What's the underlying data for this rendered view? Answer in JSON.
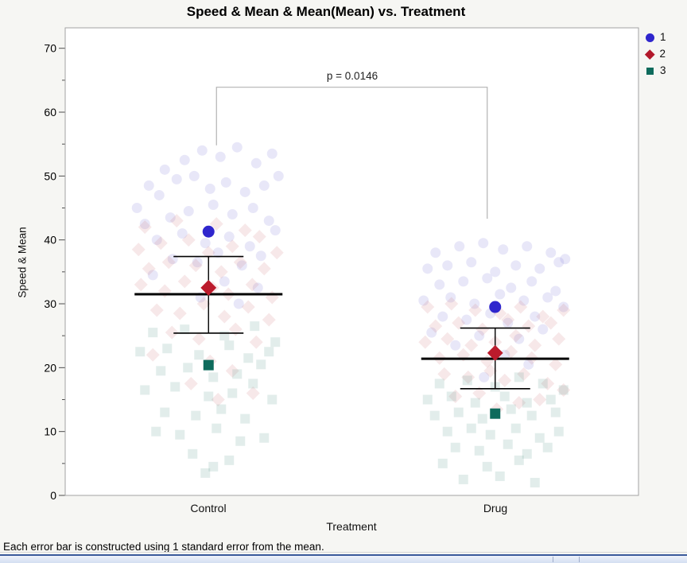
{
  "chart": {
    "title": "Speed & Mean & Mean(Mean) vs. Treatment",
    "y_axis_label": "Speed & Mean",
    "x_axis_label": "Treatment",
    "p_value_label": "p = 0.0146",
    "caption": "Each error bar is constructed using 1 standard error from the mean."
  },
  "legend": {
    "items": [
      {
        "label": "1",
        "marker": "circle",
        "color": "#2f26cd"
      },
      {
        "label": "2",
        "marker": "diamond",
        "color": "#b2182b"
      },
      {
        "label": "3",
        "marker": "square",
        "color": "#0e6b5c"
      }
    ]
  },
  "chart_data": {
    "type": "scatter",
    "title": "Speed & Mean & Mean(Mean) vs. Treatment",
    "xlabel": "Treatment",
    "ylabel": "Speed & Mean",
    "ylim": [
      0,
      73.2
    ],
    "yticks_major": [
      0,
      10,
      20,
      30,
      40,
      50,
      60,
      70
    ],
    "yticks_minor": [
      5,
      15,
      25,
      35,
      45,
      55,
      65
    ],
    "grid": false,
    "legend_position": "right",
    "categories": [
      "Control",
      "Drug"
    ],
    "series": [
      {
        "name": "1",
        "marker": "circle",
        "color": "#2f26cd",
        "light": "rgba(118,112,216,0.17)"
      },
      {
        "name": "2",
        "marker": "diamond",
        "color": "#bc1b2c",
        "light": "rgba(203,112,120,0.16)"
      },
      {
        "name": "3",
        "marker": "square",
        "color": "#0e6b5c",
        "light": "rgba(92,155,144,0.18)"
      }
    ],
    "annotation": {
      "text": "p = 0.0146",
      "bar_y": 63.9,
      "left_end_y": 54.8,
      "right_end_y": 43.3
    },
    "groups": [
      {
        "name": "Control",
        "mean_line": 31.5,
        "se_low": 25.4,
        "se_high": 37.4,
        "series_means": [
          41.3,
          32.5,
          20.4
        ],
        "points": {
          "1": [
            [
              -75,
              48.5
            ],
            [
              -55,
              51
            ],
            [
              -30,
              52.5
            ],
            [
              -8,
              54
            ],
            [
              15,
              53
            ],
            [
              36,
              54.5
            ],
            [
              60,
              52
            ],
            [
              80,
              53.5
            ],
            [
              -90,
              45
            ],
            [
              -62,
              47
            ],
            [
              -40,
              49.5
            ],
            [
              -18,
              50
            ],
            [
              2,
              48
            ],
            [
              22,
              49
            ],
            [
              46,
              47.5
            ],
            [
              70,
              48.5
            ],
            [
              88,
              50
            ],
            [
              -80,
              42.5
            ],
            [
              -48,
              43.5
            ],
            [
              -25,
              44.5
            ],
            [
              6,
              45.5
            ],
            [
              30,
              44
            ],
            [
              56,
              45
            ],
            [
              76,
              43
            ],
            [
              -65,
              40
            ],
            [
              -33,
              41
            ],
            [
              -4,
              39.5
            ],
            [
              26,
              40.5
            ],
            [
              52,
              39
            ],
            [
              84,
              41.5
            ],
            [
              -45,
              37
            ],
            [
              -14,
              36.5
            ],
            [
              12,
              38
            ],
            [
              42,
              36
            ],
            [
              66,
              37.5
            ],
            [
              -70,
              34.5
            ],
            [
              20,
              33.5
            ],
            [
              -10,
              31
            ],
            [
              38,
              30
            ],
            [
              62,
              32.5
            ]
          ],
          "2": [
            [
              -80,
              42
            ],
            [
              -40,
              43
            ],
            [
              10,
              42.5
            ],
            [
              46,
              41.5
            ],
            [
              -88,
              38.5
            ],
            [
              -60,
              39.5
            ],
            [
              -25,
              40
            ],
            [
              0,
              38
            ],
            [
              30,
              39
            ],
            [
              64,
              40.5
            ],
            [
              86,
              38
            ],
            [
              -75,
              35.5
            ],
            [
              -50,
              36.5
            ],
            [
              -16,
              36
            ],
            [
              16,
              35
            ],
            [
              40,
              36.5
            ],
            [
              70,
              35.5
            ],
            [
              -85,
              33
            ],
            [
              -55,
              32
            ],
            [
              -30,
              33.5
            ],
            [
              5,
              32.5
            ],
            [
              25,
              31.5
            ],
            [
              55,
              33
            ],
            [
              80,
              31
            ],
            [
              -65,
              29
            ],
            [
              -36,
              28.5
            ],
            [
              -6,
              30
            ],
            [
              20,
              28
            ],
            [
              50,
              29.5
            ],
            [
              76,
              27.5
            ],
            [
              -46,
              25.5
            ],
            [
              -12,
              24.5
            ],
            [
              34,
              26
            ],
            [
              60,
              24
            ],
            [
              -70,
              22
            ],
            [
              2,
              21
            ],
            [
              30,
              19.5
            ],
            [
              -22,
              17.5
            ],
            [
              56,
              16
            ],
            [
              12,
              15
            ]
          ],
          "3": [
            [
              -70,
              25.5
            ],
            [
              -30,
              26
            ],
            [
              20,
              25
            ],
            [
              58,
              26.5
            ],
            [
              84,
              24
            ],
            [
              -86,
              22.5
            ],
            [
              -52,
              23
            ],
            [
              -12,
              22
            ],
            [
              26,
              23.5
            ],
            [
              50,
              21.5
            ],
            [
              76,
              22.5
            ],
            [
              -60,
              19.5
            ],
            [
              -26,
              20
            ],
            [
              6,
              18.5
            ],
            [
              36,
              19
            ],
            [
              66,
              20.5
            ],
            [
              -80,
              16.5
            ],
            [
              -42,
              17
            ],
            [
              0,
              15.5
            ],
            [
              30,
              16
            ],
            [
              56,
              17.5
            ],
            [
              80,
              15
            ],
            [
              -55,
              13
            ],
            [
              -16,
              12.5
            ],
            [
              16,
              13.5
            ],
            [
              46,
              12
            ],
            [
              -66,
              10
            ],
            [
              -36,
              9.5
            ],
            [
              10,
              10.5
            ],
            [
              40,
              8.5
            ],
            [
              70,
              9
            ],
            [
              -20,
              6.5
            ],
            [
              26,
              5.5
            ],
            [
              6,
              4.5
            ],
            [
              -4,
              3.5
            ]
          ]
        }
      },
      {
        "name": "Drug",
        "mean_line": 21.4,
        "se_low": 16.7,
        "se_high": 26.2,
        "series_means": [
          29.5,
          22.3,
          12.8
        ],
        "points": {
          "1": [
            [
              -75,
              38
            ],
            [
              -45,
              39
            ],
            [
              -15,
              39.5
            ],
            [
              10,
              38.5
            ],
            [
              40,
              39
            ],
            [
              70,
              38
            ],
            [
              88,
              37
            ],
            [
              -85,
              35.5
            ],
            [
              -60,
              36
            ],
            [
              -30,
              36.5
            ],
            [
              0,
              35
            ],
            [
              26,
              36
            ],
            [
              56,
              35.5
            ],
            [
              80,
              36.5
            ],
            [
              -70,
              33
            ],
            [
              -40,
              33.5
            ],
            [
              -10,
              34
            ],
            [
              20,
              32.5
            ],
            [
              46,
              33.5
            ],
            [
              76,
              32
            ],
            [
              -90,
              30.5
            ],
            [
              -56,
              31
            ],
            [
              -26,
              30
            ],
            [
              6,
              31.5
            ],
            [
              36,
              30.5
            ],
            [
              66,
              31
            ],
            [
              86,
              29.5
            ],
            [
              -66,
              28
            ],
            [
              -36,
              27.5
            ],
            [
              -6,
              28.5
            ],
            [
              16,
              27
            ],
            [
              50,
              28
            ],
            [
              -80,
              25.5
            ],
            [
              -20,
              25
            ],
            [
              30,
              24.5
            ],
            [
              60,
              26
            ],
            [
              -50,
              23.5
            ],
            [
              12,
              22
            ],
            [
              42,
              20.5
            ],
            [
              -14,
              18.5
            ]
          ],
          "2": [
            [
              -85,
              29.5
            ],
            [
              -55,
              30
            ],
            [
              -25,
              29
            ],
            [
              6,
              28.5
            ],
            [
              32,
              29.5
            ],
            [
              60,
              28
            ],
            [
              86,
              29
            ],
            [
              -75,
              26.5
            ],
            [
              -46,
              27
            ],
            [
              -16,
              26
            ],
            [
              16,
              27.5
            ],
            [
              42,
              26.5
            ],
            [
              70,
              27
            ],
            [
              -88,
              24
            ],
            [
              -60,
              24.5
            ],
            [
              -30,
              23.5
            ],
            [
              0,
              24
            ],
            [
              26,
              25
            ],
            [
              50,
              23.5
            ],
            [
              80,
              24.5
            ],
            [
              -70,
              21.5
            ],
            [
              -40,
              22
            ],
            [
              -10,
              21
            ],
            [
              20,
              22.5
            ],
            [
              46,
              21.5
            ],
            [
              76,
              20.5
            ],
            [
              -64,
              19
            ],
            [
              -34,
              18.5
            ],
            [
              -6,
              19.5
            ],
            [
              12,
              18
            ],
            [
              36,
              19
            ],
            [
              66,
              17.5
            ],
            [
              -50,
              15.5
            ],
            [
              -20,
              16
            ],
            [
              30,
              14.5
            ],
            [
              56,
              15
            ],
            [
              2,
              13.5
            ],
            [
              86,
              16.5
            ]
          ],
          "3": [
            [
              -70,
              17.5
            ],
            [
              -35,
              18
            ],
            [
              0,
              17
            ],
            [
              30,
              18.5
            ],
            [
              60,
              17.5
            ],
            [
              86,
              16.5
            ],
            [
              -85,
              15
            ],
            [
              -55,
              15.5
            ],
            [
              -25,
              14.5
            ],
            [
              12,
              15.5
            ],
            [
              40,
              14.5
            ],
            [
              70,
              15
            ],
            [
              -76,
              12.5
            ],
            [
              -46,
              13
            ],
            [
              -16,
              12
            ],
            [
              20,
              13.5
            ],
            [
              46,
              12.5
            ],
            [
              76,
              13
            ],
            [
              -60,
              10
            ],
            [
              -30,
              10.5
            ],
            [
              -6,
              9.5
            ],
            [
              26,
              10.5
            ],
            [
              56,
              9
            ],
            [
              80,
              10
            ],
            [
              -50,
              7.5
            ],
            [
              -20,
              7
            ],
            [
              16,
              8
            ],
            [
              40,
              6.5
            ],
            [
              66,
              7.5
            ],
            [
              -66,
              5
            ],
            [
              -10,
              4.5
            ],
            [
              30,
              5.5
            ],
            [
              6,
              3
            ],
            [
              -40,
              2.5
            ],
            [
              50,
              2
            ]
          ]
        }
      }
    ]
  }
}
